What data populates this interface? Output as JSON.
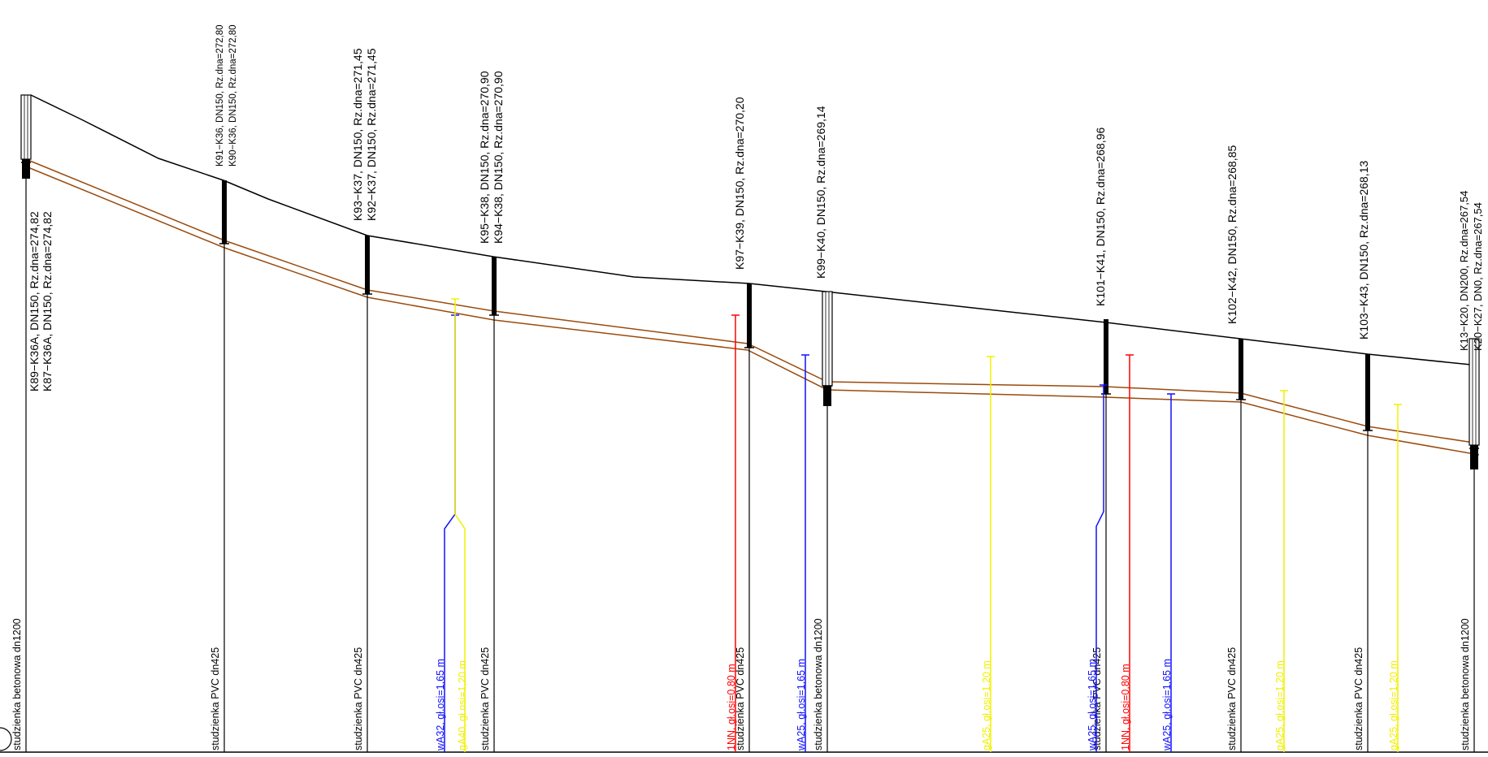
{
  "colors": {
    "background": "#ffffff",
    "terrain": "#000000",
    "pipe": "#9a4a0c",
    "water": "#1010ff",
    "gas": "#f0f000",
    "power": "#ff0000",
    "label": "#000000"
  },
  "manholes": [
    {
      "id": "m1",
      "top_label": "K89−K36A, DN150, Rz.dna=274,82",
      "top_label2": "K87−K36A, DN150, Rz.dna=274,82",
      "bottom_label": "studzienka betonowa dn1200"
    },
    {
      "id": "m2",
      "top_label": "K91−K36, DN150, Rz.dna=272,80",
      "top_label2": "K90−K36, DN150, Rz.dna=272,80",
      "bottom_label": "studzienka PVC dn425"
    },
    {
      "id": "m3",
      "top_label": "K93−K37, DN150, Rz.dna=271,45",
      "top_label2": "K92−K37, DN150, Rz.dna=271,45",
      "bottom_label": "studzienka PVC dn425"
    },
    {
      "id": "m4",
      "top_label": "K95−K38, DN150, Rz.dna=270,90",
      "top_label2": "K94−K38, DN150, Rz.dna=270,90",
      "bottom_label": "studzienka PVC dn425"
    },
    {
      "id": "m5",
      "top_label": "K97−K39, DN150, Rz.dna=270,20",
      "top_label2": "",
      "bottom_label": "studzienka PVC dn425"
    },
    {
      "id": "m6",
      "top_label": "K99−K40, DN150, Rz.dna=269,14",
      "top_label2": "",
      "bottom_label": "studzienka betonowa dn1200"
    },
    {
      "id": "m7",
      "top_label": "K101−K41, DN150, Rz.dna=268,96",
      "top_label2": "",
      "bottom_label": "studzienka PVC dn425"
    },
    {
      "id": "m8",
      "top_label": "K102−K42, DN150, Rz.dna=268,85",
      "top_label2": "",
      "bottom_label": "studzienka PVC dn425"
    },
    {
      "id": "m9",
      "top_label": "K103−K43, DN150, Rz.dna=268,13",
      "top_label2": "",
      "bottom_label": "studzienka PVC dn425"
    },
    {
      "id": "m10",
      "top_label": "K13−K20, DN200, Rz.dna=267,54",
      "top_label2": "K20−K27, DN0, Rz.dna=267,54",
      "bottom_label": "studzienka betonowa dn1200"
    }
  ],
  "crossings": [
    {
      "id": "c1",
      "type": "water",
      "label": "wA32, gł.osi=1,65 m"
    },
    {
      "id": "c2",
      "type": "gas",
      "label": "gA40, gł.osi=1,20 m"
    },
    {
      "id": "c3",
      "type": "power",
      "label": "1NN, gł.osi=0,80 m"
    },
    {
      "id": "c4",
      "type": "water",
      "label": "wA25, gł.osi=1,65 m"
    },
    {
      "id": "c5",
      "type": "gas",
      "label": "gA25, gł.osi=1,20 m"
    },
    {
      "id": "c6",
      "type": "water",
      "label": "wA25, gł.osi=1,65 m"
    },
    {
      "id": "c7",
      "type": "power",
      "label": "1NN, gł.osi=0,80 m"
    },
    {
      "id": "c8",
      "type": "water",
      "label": "wA25, gł.osi=1,65 m"
    },
    {
      "id": "c9",
      "type": "gas",
      "label": "gA25, gł.osi=1,20 m"
    },
    {
      "id": "c10",
      "type": "gas",
      "label": "gA25, gł.osi=1,20 m"
    }
  ]
}
